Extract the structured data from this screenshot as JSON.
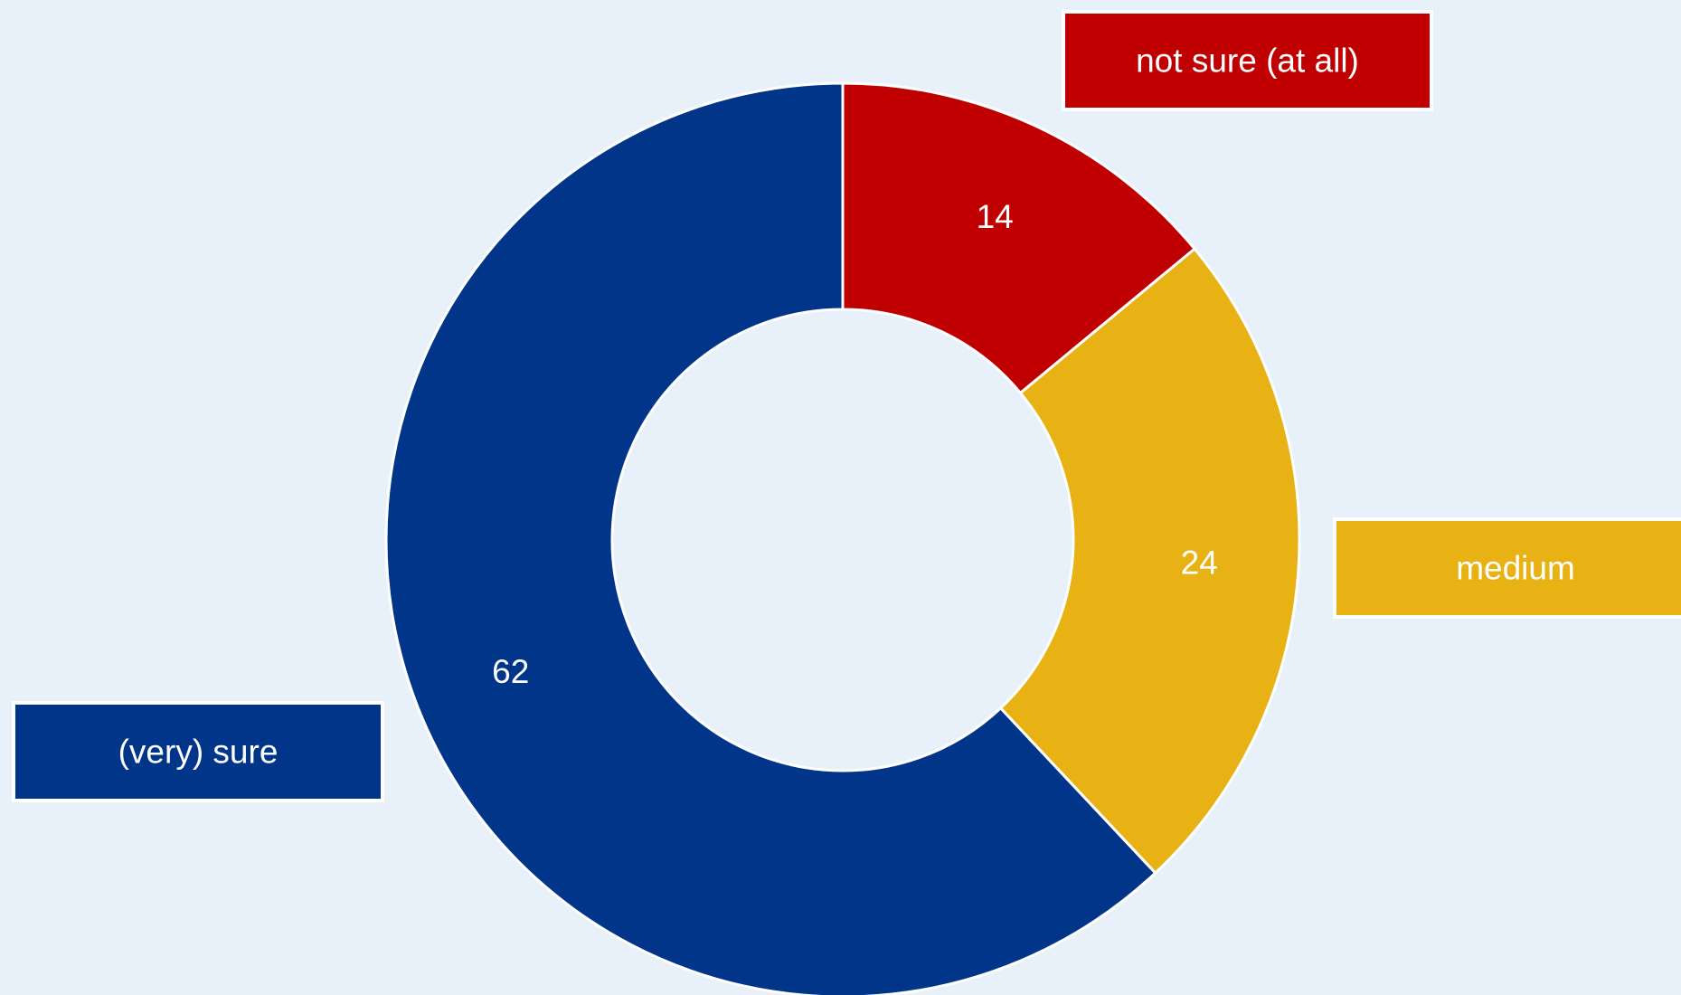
{
  "chart_data": {
    "type": "pie",
    "variant": "donut",
    "categories": [
      "not sure (at all)",
      "medium",
      "(very) sure"
    ],
    "values": [
      14,
      24,
      62
    ],
    "colors": [
      "#c00000",
      "#e8b215",
      "#00358a"
    ],
    "value_labels": [
      "14",
      "24",
      "62"
    ],
    "title": "",
    "legend": "none",
    "category_labels": "boxed callouts beside slices"
  }
}
